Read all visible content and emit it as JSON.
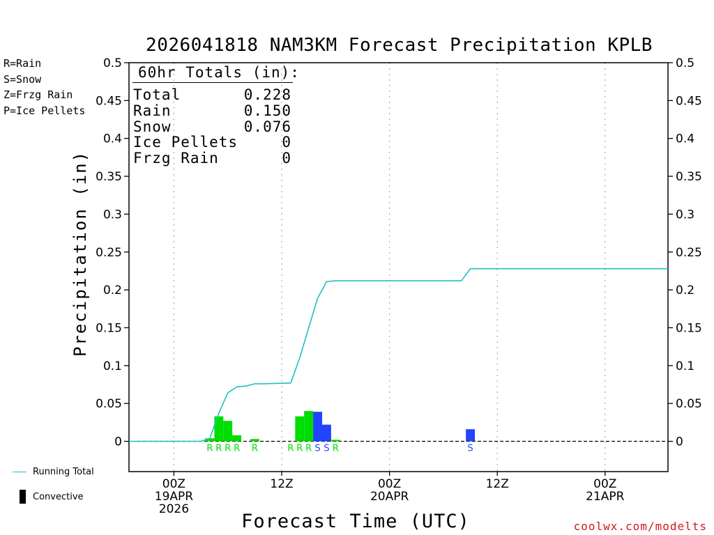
{
  "header": {
    "title": "2026041818 NAM3KM Forecast Precipitation KPLB"
  },
  "type_legend": [
    {
      "label": "R=Rain",
      "color": "#00dd00"
    },
    {
      "label": "S=Snow",
      "color": "#2244ff"
    },
    {
      "label": "Z=Frzg Rain",
      "color": "#f08a3c"
    },
    {
      "label": "P=Ice Pellets",
      "color": "#e8209a"
    }
  ],
  "totals": {
    "heading": "60hr Totals (in):",
    "rows": [
      {
        "label": "Total",
        "value": "0.228"
      },
      {
        "label": "Rain",
        "value": "0.150"
      },
      {
        "label": "Snow",
        "value": "0.076"
      },
      {
        "label": "Ice Pellets",
        "value": "0"
      },
      {
        "label": "Frzg Rain",
        "value": "0"
      }
    ]
  },
  "bottom_legend": {
    "running_total": "Running Total",
    "convective": "Convective"
  },
  "credit": "coolwx.com/modelts",
  "colors": {
    "rain": "#00dd00",
    "snow": "#2244ff",
    "running_total": "#20c0c0",
    "credit": "#d21818",
    "grid": "#aaaaaa"
  },
  "chart_data": {
    "type": "bar",
    "title": "2026041818 NAM3KM Forecast Precipitation KPLB",
    "xlabel": "Forecast Time (UTC)",
    "ylabel": "Precipitation (in)",
    "ylim": [
      -0.04,
      0.5
    ],
    "xlim": [
      -5,
      55
    ],
    "x_units": "hours since 19APR 00Z",
    "yticks": [
      "0.5",
      "0.45",
      "0.4",
      "0.35",
      "0.3",
      "0.25",
      "0.2",
      "0.15",
      "0.1",
      "0.05",
      "0"
    ],
    "ytick_values": [
      0.5,
      0.45,
      0.4,
      0.35,
      0.3,
      0.25,
      0.2,
      0.15,
      0.1,
      0.05,
      0
    ],
    "xticks": [
      {
        "x": 0,
        "lines": [
          "00Z",
          "19APR",
          "2026"
        ]
      },
      {
        "x": 12,
        "lines": [
          "12Z"
        ]
      },
      {
        "x": 24,
        "lines": [
          "00Z",
          "20APR"
        ]
      },
      {
        "x": 36,
        "lines": [
          "12Z"
        ]
      },
      {
        "x": 48,
        "lines": [
          "00Z",
          "21APR"
        ]
      }
    ],
    "bars": [
      {
        "x": 4,
        "value": 0.004,
        "type": "R"
      },
      {
        "x": 5,
        "value": 0.033,
        "type": "R"
      },
      {
        "x": 6,
        "value": 0.027,
        "type": "R"
      },
      {
        "x": 7,
        "value": 0.008,
        "type": "R"
      },
      {
        "x": 9,
        "value": 0.003,
        "type": "R"
      },
      {
        "x": 14,
        "value": 0.033,
        "type": "R"
      },
      {
        "x": 15,
        "value": 0.04,
        "type": "R"
      },
      {
        "x": 16,
        "value": 0.039,
        "type": "S"
      },
      {
        "x": 17,
        "value": 0.022,
        "type": "S"
      },
      {
        "x": 18,
        "value": 0.002,
        "type": "R"
      },
      {
        "x": 33,
        "value": 0.016,
        "type": "S"
      }
    ],
    "type_labels": [
      {
        "x": 4,
        "label": "R",
        "type": "R"
      },
      {
        "x": 5,
        "label": "R",
        "type": "R"
      },
      {
        "x": 6,
        "label": "R",
        "type": "R"
      },
      {
        "x": 7,
        "label": "R",
        "type": "R"
      },
      {
        "x": 9,
        "label": "R",
        "type": "R"
      },
      {
        "x": 13,
        "label": "R",
        "type": "R"
      },
      {
        "x": 14,
        "label": "R",
        "type": "R"
      },
      {
        "x": 15,
        "label": "R",
        "type": "R"
      },
      {
        "x": 16,
        "label": "S",
        "type": "S"
      },
      {
        "x": 17,
        "label": "S",
        "type": "S"
      },
      {
        "x": 18,
        "label": "R",
        "type": "R"
      },
      {
        "x": 33,
        "label": "S",
        "type": "S"
      }
    ],
    "running_total": {
      "name": "Running Total",
      "x": [
        -5,
        3,
        4,
        5,
        6,
        7,
        8,
        9,
        10,
        13,
        14,
        15,
        16,
        17,
        18,
        32,
        33,
        55
      ],
      "y": [
        0,
        0,
        0.004,
        0.037,
        0.064,
        0.072,
        0.073,
        0.076,
        0.076,
        0.077,
        0.11,
        0.15,
        0.189,
        0.211,
        0.212,
        0.212,
        0.228,
        0.228
      ]
    }
  }
}
